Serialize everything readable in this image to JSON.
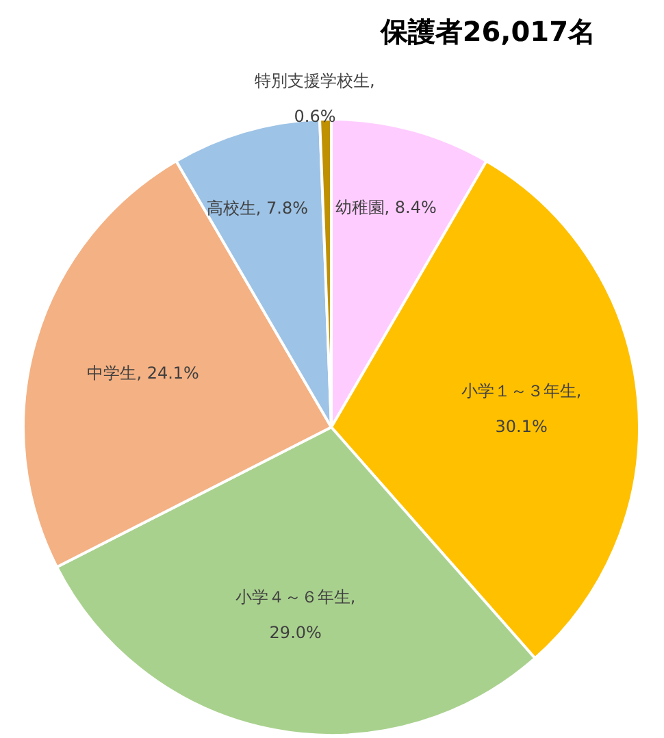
{
  "chart_data": {
    "type": "pie",
    "title": "保護者26,017名",
    "categories": [
      "幼稚園",
      "小学１～３年生",
      "小学４～６年生",
      "中学生",
      "高校生",
      "特別支援学校生"
    ],
    "values": [
      8.4,
      30.1,
      29.0,
      24.1,
      7.8,
      0.6
    ],
    "colors": [
      "#ffccff",
      "#ffc000",
      "#a9d18e",
      "#f4b183",
      "#9dc3e6",
      "#bf9000"
    ],
    "value_labels": [
      ", 8.4%",
      ", 30.1%",
      ", 29.0%",
      ", 24.1%",
      ", 7.8%",
      ", 0.6%"
    ],
    "legend": false
  }
}
